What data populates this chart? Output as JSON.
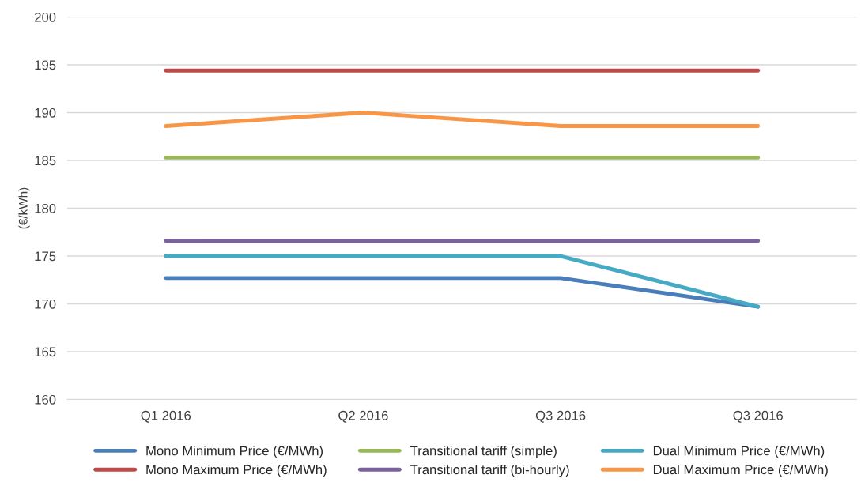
{
  "chart_data": {
    "type": "line",
    "ylabel": "(€/kWh)",
    "categories": [
      "Q1 2016",
      "Q2 2016",
      "Q3 2016",
      "Q3 2016"
    ],
    "series": [
      {
        "name": "Mono Minimum Price (€/MWh)",
        "color": "#4a7ebb",
        "values": [
          172.7,
          172.7,
          172.7,
          169.7
        ]
      },
      {
        "name": "Mono Maximum Price (€/MWh)",
        "color": "#be4b48",
        "values": [
          194.4,
          194.4,
          194.4,
          194.4
        ]
      },
      {
        "name": "Transitional tariff (simple)",
        "color": "#98b954",
        "values": [
          185.3,
          185.3,
          185.3,
          185.3
        ]
      },
      {
        "name": "Transitional tariff (bi-hourly)",
        "color": "#7d60a0",
        "values": [
          176.6,
          176.6,
          176.6,
          176.6
        ]
      },
      {
        "name": "Dual Minimum Price (€/MWh)",
        "color": "#46aac5",
        "values": [
          175.0,
          175.0,
          175.0,
          169.7
        ]
      },
      {
        "name": "Dual Maximum Price (€/MWh)",
        "color": "#f79646",
        "values": [
          188.6,
          190.0,
          188.6,
          188.6
        ]
      }
    ],
    "ylim": [
      160,
      200
    ],
    "yticks": [
      160,
      165,
      170,
      175,
      180,
      185,
      190,
      195,
      200
    ],
    "grid": "y",
    "legend": "bottom",
    "marker": "none",
    "line_style": "solid"
  }
}
